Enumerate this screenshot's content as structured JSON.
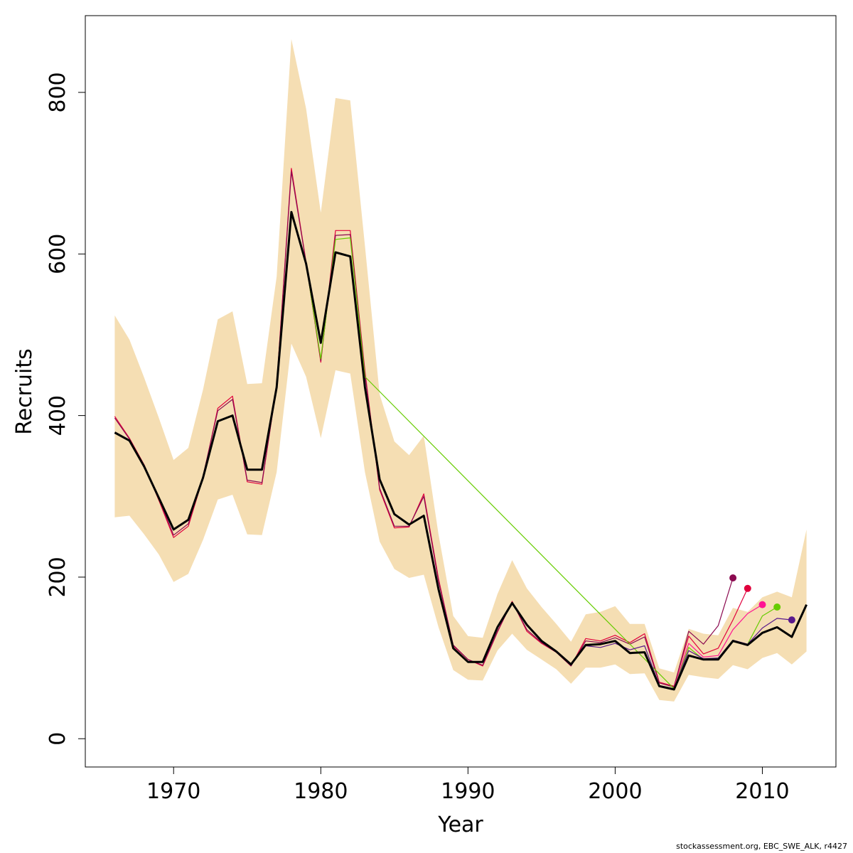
{
  "chart_data": {
    "type": "line",
    "xlabel": "Year",
    "ylabel": "Recruits",
    "xlim": [
      1964,
      2015
    ],
    "ylim": [
      -35,
      895
    ],
    "x_ticks": [
      1970,
      1980,
      1990,
      2000,
      2010
    ],
    "y_ticks": [
      0,
      200,
      400,
      600,
      800
    ],
    "x_tick_labels": [
      "1970",
      "1980",
      "1990",
      "2000",
      "2010"
    ],
    "y_tick_labels": [
      "0",
      "200",
      "400",
      "600",
      "800"
    ],
    "band": {
      "color": "#F5DEB3",
      "years": [
        1966,
        1967,
        1968,
        1969,
        1970,
        1971,
        1972,
        1973,
        1974,
        1975,
        1976,
        1977,
        1978,
        1979,
        1980,
        1981,
        1982,
        1983,
        1984,
        1985,
        1986,
        1987,
        1988,
        1989,
        1990,
        1991,
        1992,
        1993,
        1994,
        1995,
        1996,
        1997,
        1998,
        1999,
        2000,
        2001,
        2002,
        2003,
        2004,
        2005,
        2006,
        2007,
        2008,
        2009,
        2010,
        2011,
        2012,
        2013
      ],
      "upper": [
        524,
        494,
        447,
        397,
        345,
        360,
        432,
        519,
        529,
        439,
        440,
        572,
        866,
        780,
        651,
        793,
        790,
        610,
        426,
        368,
        351,
        375,
        253,
        152,
        127,
        125,
        179,
        221,
        186,
        163,
        142,
        120,
        154,
        157,
        164,
        142,
        142,
        87,
        82,
        136,
        130,
        128,
        162,
        157,
        175,
        182,
        175,
        259
      ],
      "lower": [
        274,
        276,
        253,
        228,
        194,
        204,
        246,
        296,
        302,
        253,
        252,
        330,
        489,
        448,
        372,
        456,
        452,
        330,
        244,
        210,
        199,
        203,
        138,
        85,
        73,
        72,
        109,
        130,
        110,
        98,
        86,
        68,
        88,
        88,
        92,
        80,
        81,
        48,
        46,
        79,
        76,
        74,
        91,
        86,
        100,
        106,
        92,
        108
      ]
    },
    "series": [
      {
        "color": "#000000",
        "width": 3,
        "years": [
          1966,
          1967,
          1968,
          1969,
          1970,
          1971,
          1972,
          1973,
          1974,
          1975,
          1976,
          1977,
          1978,
          1979,
          1980,
          1981,
          1982,
          1983,
          1984,
          1985,
          1986,
          1987,
          1988,
          1989,
          1990,
          1991,
          1992,
          1993,
          1994,
          1995,
          1996,
          1997,
          1998,
          1999,
          2000,
          2001,
          2002,
          2003,
          2004,
          2005,
          2006,
          2007,
          2008,
          2009,
          2010,
          2011,
          2012,
          2013
        ],
        "values": [
          379,
          369,
          337,
          298,
          259,
          271,
          323,
          393,
          400,
          333,
          333,
          435,
          652,
          588,
          490,
          602,
          597,
          435,
          321,
          278,
          265,
          276,
          185,
          112,
          95,
          95,
          138,
          168,
          141,
          121,
          108,
          92,
          116,
          117,
          121,
          106,
          107,
          65,
          61,
          103,
          98,
          98,
          121,
          116,
          131,
          138,
          126,
          166
        ]
      },
      {
        "color": "#E0003C",
        "width": 1.2,
        "years": [
          1966,
          1967,
          1968,
          1969,
          1970,
          1971,
          1972,
          1973,
          1974,
          1975,
          1976,
          1977,
          1978,
          1979,
          1980,
          1981,
          1982,
          1983,
          1984,
          1985,
          1986,
          1987,
          1988,
          1989,
          1990,
          1991,
          1992,
          1993,
          1994,
          1995,
          1996,
          1997,
          1998,
          1999,
          2000,
          2001,
          2002,
          2003,
          2004,
          2005,
          2006,
          2007,
          2008,
          2009
        ],
        "values": [
          399,
          372,
          339,
          295,
          249,
          263,
          323,
          409,
          424,
          318,
          315,
          437,
          706,
          590,
          466,
          629,
          629,
          455,
          308,
          261,
          262,
          303,
          198,
          115,
          98,
          90,
          132,
          170,
          133,
          118,
          107,
          90,
          124,
          121,
          128,
          119,
          130,
          70,
          65,
          127,
          105,
          112,
          147,
          186
        ],
        "endpoint": true
      },
      {
        "color": "#8B0A50",
        "width": 1.2,
        "years": [
          1966,
          1967,
          1968,
          1969,
          1970,
          1971,
          1972,
          1973,
          1974,
          1975,
          1976,
          1977,
          1978,
          1979,
          1980,
          1981,
          1982,
          1983,
          1984,
          1985,
          1986,
          1987,
          1988,
          1989,
          1990,
          1991,
          1992,
          1993,
          1994,
          1995,
          1996,
          1997,
          1998,
          1999,
          2000,
          2001,
          2002,
          2003,
          2004,
          2005,
          2006,
          2007,
          2008
        ],
        "values": [
          397,
          371,
          338,
          297,
          252,
          266,
          325,
          406,
          420,
          320,
          317,
          436,
          702,
          589,
          468,
          623,
          624,
          451,
          310,
          263,
          263,
          300,
          195,
          116,
          98,
          91,
          133,
          169,
          135,
          119,
          107,
          90,
          121,
          119,
          125,
          117,
          126,
          69,
          64,
          133,
          117,
          140,
          199
        ],
        "endpoint": true
      },
      {
        "color": "#FF1493",
        "width": 1.2,
        "years": [
          2004,
          2005,
          2006,
          2007,
          2008,
          2009,
          2010
        ],
        "values": [
          63,
          118,
          101,
          103,
          135,
          155,
          166
        ],
        "endpoint": true
      },
      {
        "color": "#66CC00",
        "width": 1.2,
        "years": [
          1979,
          1980,
          1981,
          1982,
          1983,
          2004,
          2005,
          2006,
          2007,
          2008,
          2009,
          2010,
          2011
        ],
        "values": [
          588,
          470,
          618,
          620,
          448,
          62,
          113,
          98,
          100,
          120,
          117,
          152,
          163
        ],
        "endpoint": true
      },
      {
        "color": "#5A1A8C",
        "width": 1.2,
        "years": [
          1996,
          1997,
          1998,
          1999,
          2000,
          2001,
          2002,
          2003,
          2004,
          2005,
          2006,
          2007,
          2008,
          2009,
          2010,
          2011,
          2012
        ],
        "values": [
          108,
          91,
          115,
          113,
          118,
          110,
          115,
          66,
          62,
          109,
          99,
          100,
          122,
          117,
          137,
          149,
          147
        ],
        "endpoint": true
      }
    ]
  },
  "footer_text": "stockassessment.org, EBC_SWE_ALK, r4427"
}
